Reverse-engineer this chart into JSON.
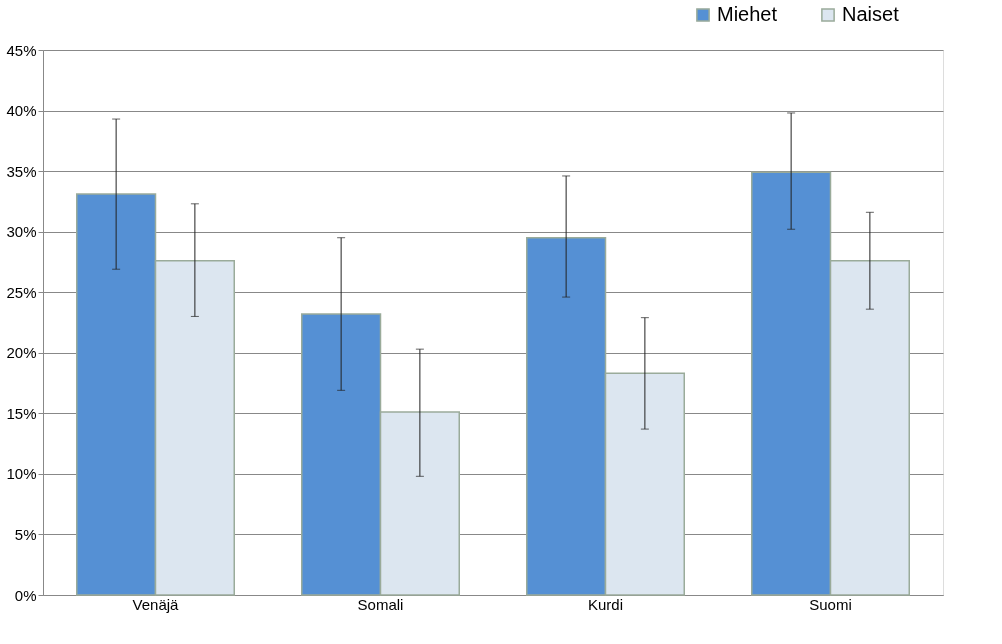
{
  "chart_data": {
    "type": "bar",
    "categories": [
      "Venäjä",
      "Somali",
      "Kurdi",
      "Suomi"
    ],
    "series": [
      {
        "name": "Miehet",
        "color": "#5590d4",
        "values": [
          33.1,
          23.2,
          29.5,
          34.9
        ],
        "errors": [
          [
            26.9,
            39.3
          ],
          [
            16.9,
            29.5
          ],
          [
            24.6,
            34.6
          ],
          [
            30.2,
            39.8
          ]
        ]
      },
      {
        "name": "Naiset",
        "color": "#dce6f0",
        "values": [
          27.6,
          15.1,
          18.3,
          27.6
        ],
        "errors": [
          [
            23.0,
            32.3
          ],
          [
            9.8,
            20.3
          ],
          [
            13.7,
            22.9
          ],
          [
            23.6,
            31.6
          ]
        ]
      }
    ],
    "ylim": [
      0,
      45
    ],
    "yticks": [
      {
        "value": 0,
        "label": "0%"
      },
      {
        "value": 5,
        "label": "5%"
      },
      {
        "value": 10,
        "label": "10%"
      },
      {
        "value": 15,
        "label": "15%"
      },
      {
        "value": 20,
        "label": "20%"
      },
      {
        "value": 25,
        "label": "25%"
      },
      {
        "value": 30,
        "label": "30%"
      },
      {
        "value": 35,
        "label": "35%"
      },
      {
        "value": 40,
        "label": "40%"
      },
      {
        "value": 45,
        "label": "45%"
      }
    ],
    "grid": "y",
    "legend": "top right"
  }
}
